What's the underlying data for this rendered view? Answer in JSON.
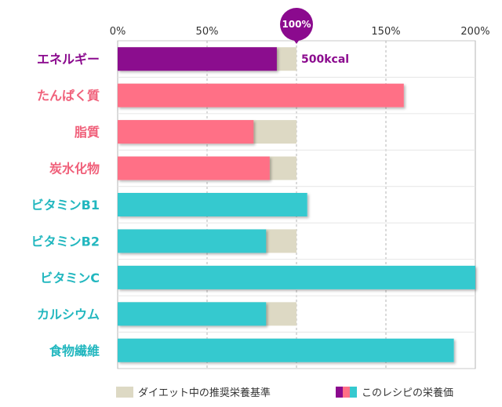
{
  "chart_data": {
    "type": "bar",
    "orientation": "horizontal",
    "categories": [
      "エネルギー",
      "たんぱく質",
      "脂質",
      "炭水化物",
      "ビタミンB1",
      "ビタミンB2",
      "ビタミンC",
      "カルシウム",
      "食物繊維"
    ],
    "category_colors": [
      "#8B0A8E",
      "#F0607A",
      "#F0607A",
      "#F0607A",
      "#22B7BF",
      "#22B7BF",
      "#22B7BF",
      "#22B7BF",
      "#22B7BF"
    ],
    "series": [
      {
        "name": "ダイエット中の推奨栄養基準",
        "color": "#DDD9C4",
        "values": [
          100,
          100,
          100,
          100,
          100,
          100,
          100,
          100,
          100
        ]
      },
      {
        "name": "このレシピの栄養価",
        "colors": [
          "#8B0A8E",
          "#FF6F86",
          "#FF6F86",
          "#FF6F86",
          "#35C9CF",
          "#35C9CF",
          "#35C9CF",
          "#35C9CF",
          "#35C9CF"
        ],
        "values": [
          89,
          160,
          76,
          85,
          106,
          83,
          200,
          83,
          188
        ]
      }
    ],
    "xlim": [
      0,
      200
    ],
    "ticks": [
      "0%",
      "50%",
      "100%",
      "150%",
      "200%"
    ],
    "tick_values": [
      0,
      50,
      100,
      150,
      200
    ],
    "highlight_tick": {
      "value": 100,
      "label": "100%",
      "color": "#8B0A8E"
    },
    "annotation": {
      "category": "エネルギー",
      "text": "500kcal",
      "color": "#8B0A8E"
    },
    "grid": true,
    "legend_position": "bottom-center"
  },
  "legend": {
    "reference_label": "ダイエット中の推奨栄養基準",
    "reference_color": "#DDD9C4",
    "recipe_label": "このレシピの栄養価",
    "recipe_colors": [
      "#8B0A8E",
      "#FF6F86",
      "#35C9CF"
    ]
  }
}
